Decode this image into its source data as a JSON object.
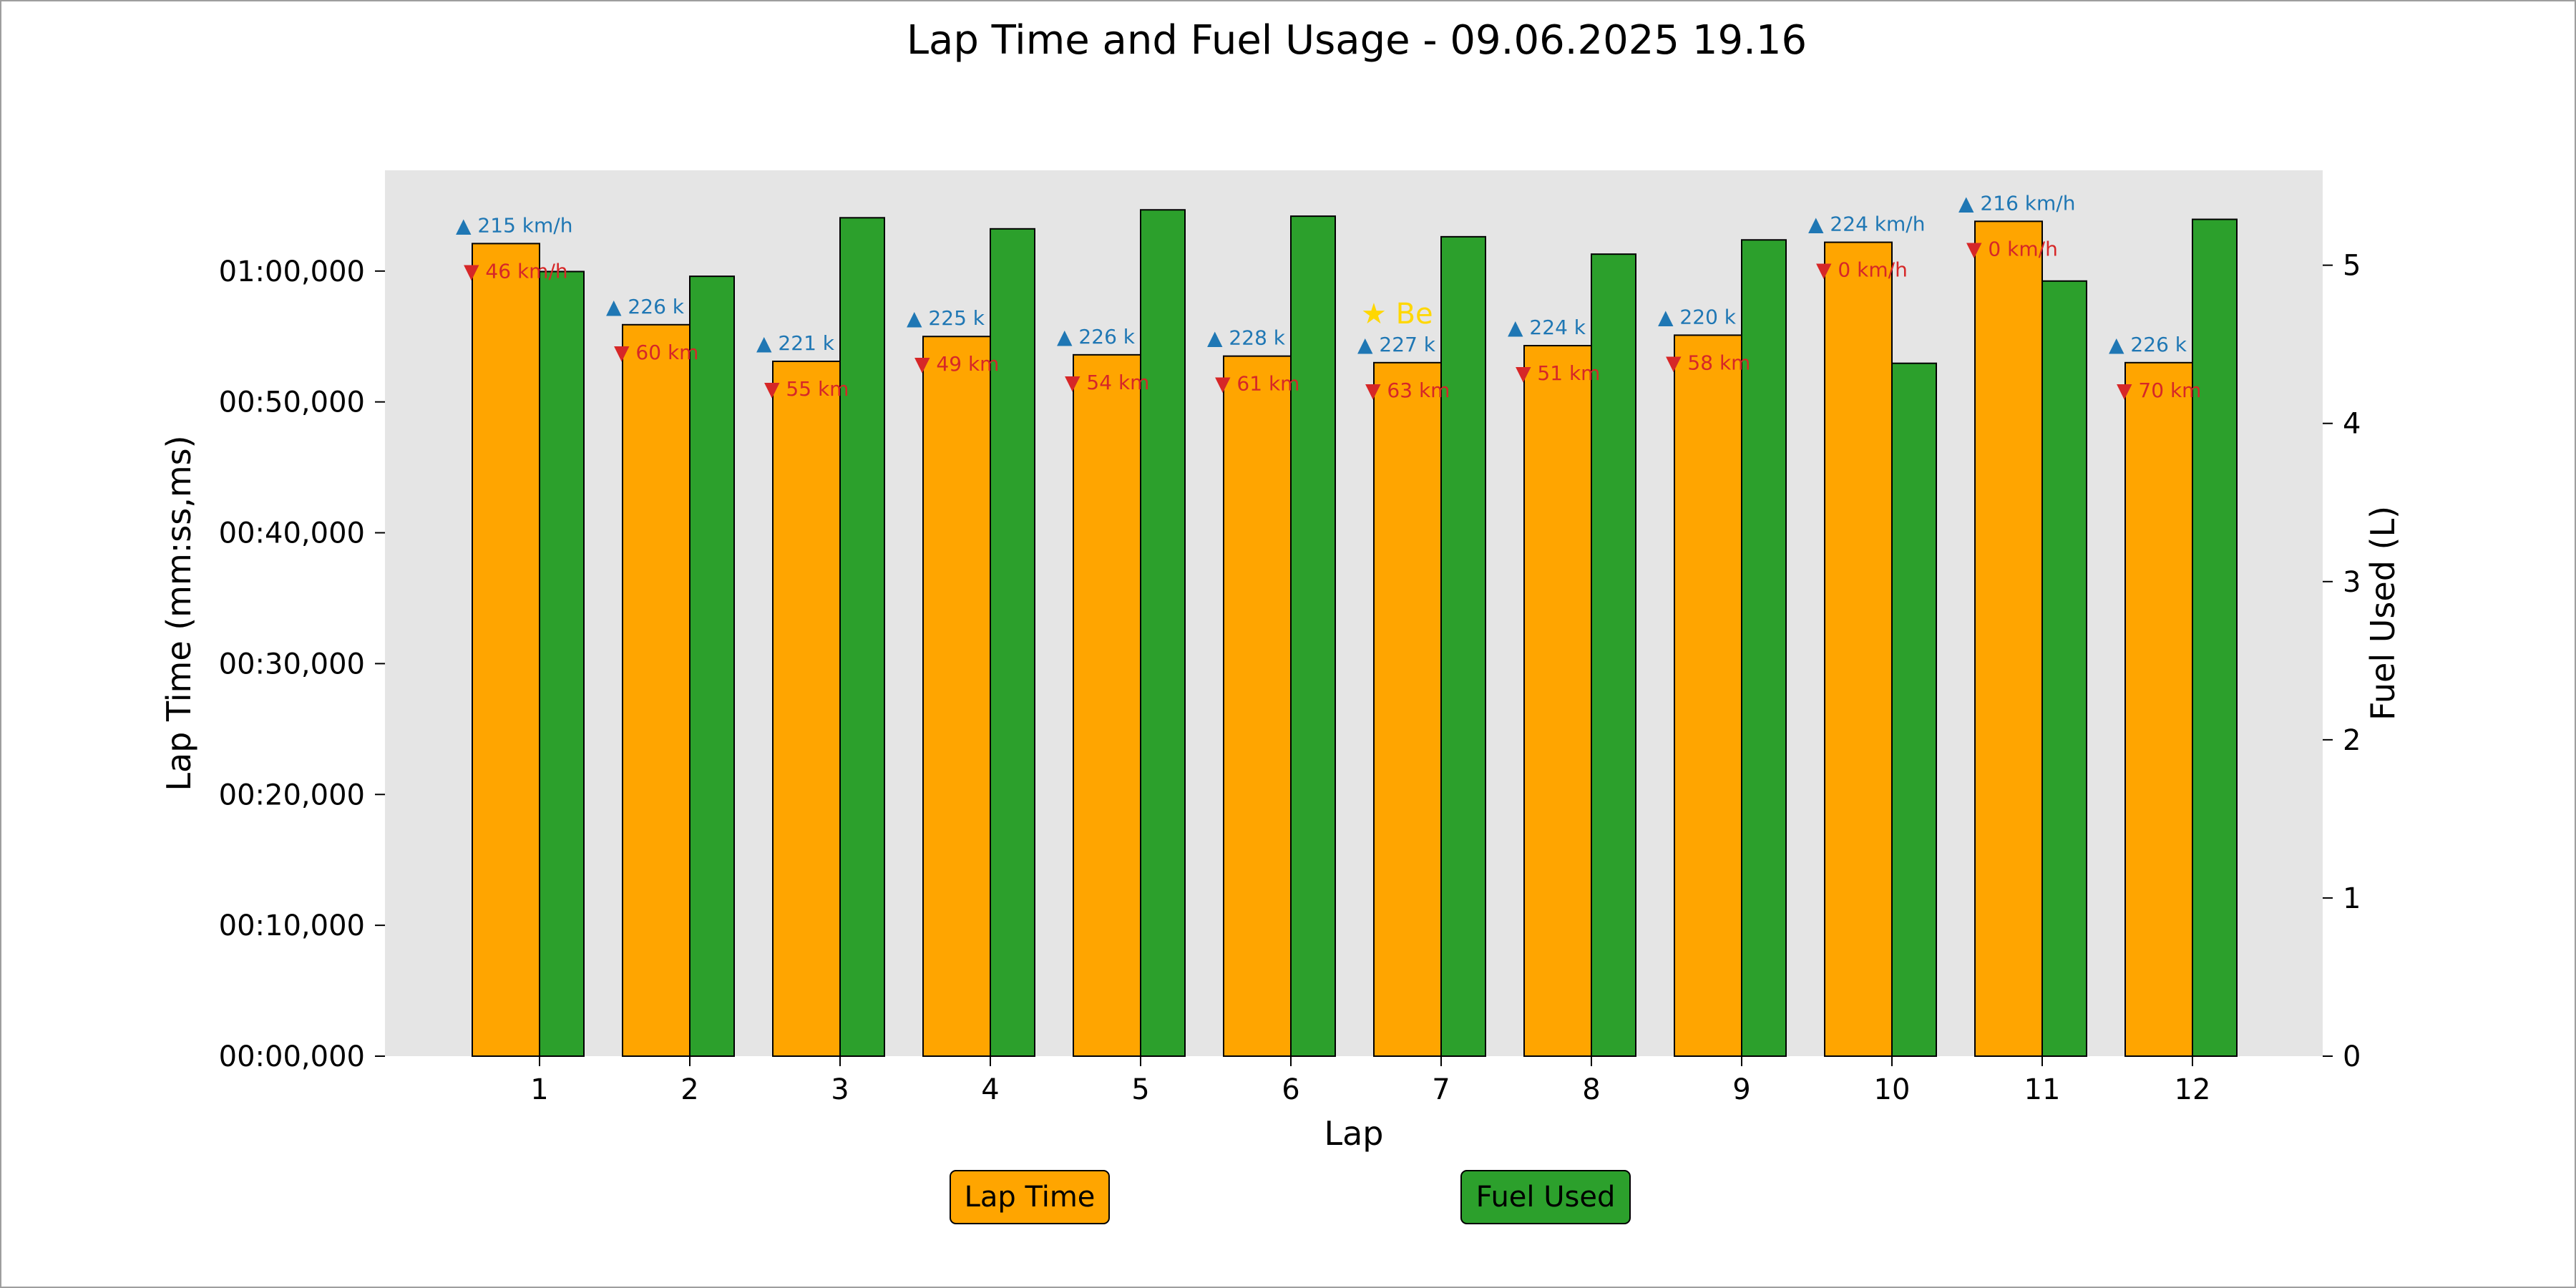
{
  "colors": {
    "lap_time": "#ffa500",
    "fuel": "#2ca02c",
    "max_speed": "#1f77b4",
    "min_speed": "#d62728",
    "best": "#ffd700",
    "plot_bg": "#e5e5e5"
  },
  "chart_data": {
    "type": "bar",
    "title": "Lap Time and Fuel Usage - 09.06.2025 19.16",
    "xlabel": "Lap",
    "ylabel": "Lap Time (mm:ss,ms)",
    "y2label": "Fuel Used (L)",
    "categories": [
      "1",
      "2",
      "3",
      "4",
      "5",
      "6",
      "7",
      "8",
      "9",
      "10",
      "11",
      "12"
    ],
    "ylim": [
      0,
      67.7
    ],
    "y2lim": [
      0,
      5.6
    ],
    "yticks": [
      0,
      10,
      20,
      30,
      40,
      50,
      60
    ],
    "ytick_labels": [
      "00:00,000",
      "00:10,000",
      "00:20,000",
      "00:30,000",
      "00:40,000",
      "00:50,000",
      "01:00,000"
    ],
    "y2ticks": [
      0,
      1,
      2,
      3,
      4,
      5
    ],
    "y2tick_labels": [
      "0",
      "1",
      "2",
      "3",
      "4",
      "5"
    ],
    "grid": false,
    "legend_position": "bottom",
    "series": [
      {
        "name": "Lap Time",
        "axis": "left",
        "values": [
          62.1,
          55.9,
          53.1,
          55.0,
          53.6,
          53.5,
          53.0,
          54.3,
          55.1,
          62.2,
          63.8,
          53.0
        ]
      },
      {
        "name": "Fuel Used",
        "axis": "right",
        "values": [
          4.96,
          4.93,
          5.3,
          5.23,
          5.35,
          5.31,
          5.18,
          5.07,
          5.16,
          4.38,
          4.9,
          5.29
        ]
      }
    ],
    "annotations": {
      "max_speed": [
        "▲ 215 km/h",
        "▲ 226 k",
        "▲ 221 k",
        "▲ 225 k",
        "▲ 226 k",
        "▲ 228 k",
        "▲ 227 k",
        "▲ 224 k",
        "▲ 220 k",
        "▲ 224 km/h",
        "▲ 216 km/h",
        "▲ 226 k"
      ],
      "min_speed": [
        "▼ 46 km/h",
        "▼ 60 km",
        "▼ 55 km",
        "▼ 49 km",
        "▼ 54 km",
        "▼ 61 km",
        "▼ 63 km",
        "▼ 51 km",
        "▼ 58 km",
        "▼ 0 km/h",
        "▼ 0 km/h",
        "▼ 70 km"
      ],
      "best": {
        "lap_index": 6,
        "text": "★ Be"
      }
    }
  }
}
